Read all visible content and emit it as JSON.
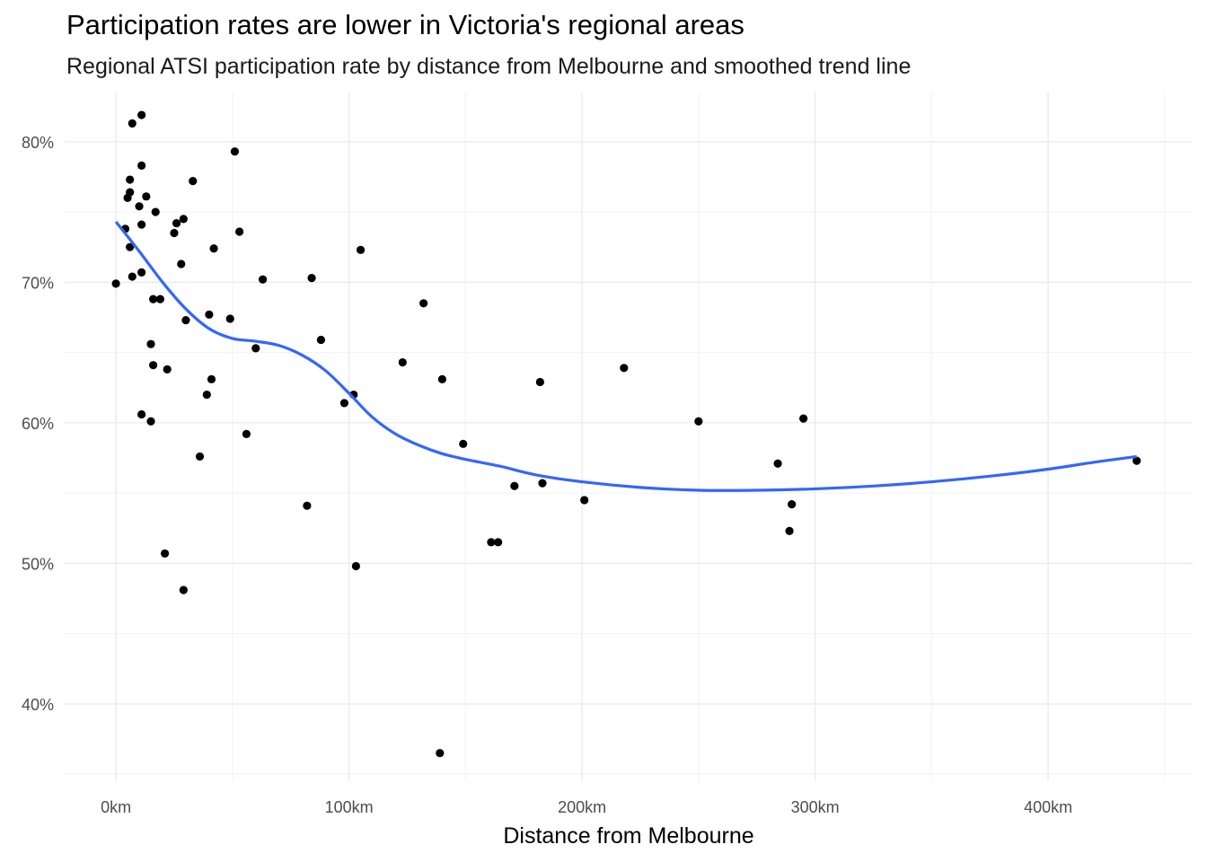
{
  "chart_data": {
    "type": "scatter",
    "title": "Participation rates are lower in Victoria's regional areas",
    "subtitle": "Regional ATSI participation rate by distance from Melbourne and smoothed trend line",
    "xlabel": "Distance from Melbourne",
    "ylabel": "",
    "xlim": [
      -22,
      462
    ],
    "ylim": [
      0.345,
      0.835
    ],
    "x_ticks": [
      0,
      100,
      200,
      300,
      400
    ],
    "x_tick_labels": [
      "0km",
      "100km",
      "200km",
      "300km",
      "400km"
    ],
    "y_ticks": [
      0.4,
      0.5,
      0.6,
      0.7,
      0.8
    ],
    "y_tick_labels": [
      "40%",
      "50%",
      "60%",
      "70%",
      "80%"
    ],
    "grid": true,
    "point_color": "#000000",
    "trend_color": "#3366ff",
    "points": [
      {
        "x": 0,
        "y": 0.699
      },
      {
        "x": 4,
        "y": 0.738
      },
      {
        "x": 5,
        "y": 0.76
      },
      {
        "x": 6,
        "y": 0.725
      },
      {
        "x": 6,
        "y": 0.764
      },
      {
        "x": 6,
        "y": 0.773
      },
      {
        "x": 7,
        "y": 0.704
      },
      {
        "x": 7,
        "y": 0.813
      },
      {
        "x": 10,
        "y": 0.754
      },
      {
        "x": 11,
        "y": 0.707
      },
      {
        "x": 11,
        "y": 0.741
      },
      {
        "x": 11,
        "y": 0.606
      },
      {
        "x": 11,
        "y": 0.783
      },
      {
        "x": 11,
        "y": 0.819
      },
      {
        "x": 13,
        "y": 0.761
      },
      {
        "x": 15,
        "y": 0.656
      },
      {
        "x": 15,
        "y": 0.601
      },
      {
        "x": 16,
        "y": 0.688
      },
      {
        "x": 16,
        "y": 0.641
      },
      {
        "x": 17,
        "y": 0.75
      },
      {
        "x": 19,
        "y": 0.688
      },
      {
        "x": 21,
        "y": 0.507
      },
      {
        "x": 22,
        "y": 0.638
      },
      {
        "x": 25,
        "y": 0.735
      },
      {
        "x": 26,
        "y": 0.742
      },
      {
        "x": 28,
        "y": 0.713
      },
      {
        "x": 29,
        "y": 0.745
      },
      {
        "x": 29,
        "y": 0.481
      },
      {
        "x": 30,
        "y": 0.673
      },
      {
        "x": 33,
        "y": 0.772
      },
      {
        "x": 36,
        "y": 0.576
      },
      {
        "x": 39,
        "y": 0.62
      },
      {
        "x": 40,
        "y": 0.677
      },
      {
        "x": 41,
        "y": 0.631
      },
      {
        "x": 42,
        "y": 0.724
      },
      {
        "x": 49,
        "y": 0.674
      },
      {
        "x": 51,
        "y": 0.793
      },
      {
        "x": 53,
        "y": 0.736
      },
      {
        "x": 56,
        "y": 0.592
      },
      {
        "x": 60,
        "y": 0.653
      },
      {
        "x": 63,
        "y": 0.702
      },
      {
        "x": 82,
        "y": 0.541
      },
      {
        "x": 84,
        "y": 0.703
      },
      {
        "x": 88,
        "y": 0.659
      },
      {
        "x": 98,
        "y": 0.614
      },
      {
        "x": 102,
        "y": 0.62
      },
      {
        "x": 103,
        "y": 0.498
      },
      {
        "x": 105,
        "y": 0.723
      },
      {
        "x": 123,
        "y": 0.643
      },
      {
        "x": 132,
        "y": 0.685
      },
      {
        "x": 139,
        "y": 0.365
      },
      {
        "x": 140,
        "y": 0.631
      },
      {
        "x": 149,
        "y": 0.585
      },
      {
        "x": 161,
        "y": 0.515
      },
      {
        "x": 164,
        "y": 0.515
      },
      {
        "x": 171,
        "y": 0.555
      },
      {
        "x": 182,
        "y": 0.629
      },
      {
        "x": 183,
        "y": 0.557
      },
      {
        "x": 201,
        "y": 0.545
      },
      {
        "x": 218,
        "y": 0.639
      },
      {
        "x": 250,
        "y": 0.601
      },
      {
        "x": 284,
        "y": 0.571
      },
      {
        "x": 289,
        "y": 0.523
      },
      {
        "x": 290,
        "y": 0.542
      },
      {
        "x": 295,
        "y": 0.603
      },
      {
        "x": 438,
        "y": 0.573
      }
    ],
    "trend": [
      {
        "x": 0,
        "y": 0.743
      },
      {
        "x": 10,
        "y": 0.722
      },
      {
        "x": 20,
        "y": 0.7
      },
      {
        "x": 30,
        "y": 0.681
      },
      {
        "x": 40,
        "y": 0.667
      },
      {
        "x": 50,
        "y": 0.66
      },
      {
        "x": 60,
        "y": 0.658
      },
      {
        "x": 70,
        "y": 0.655
      },
      {
        "x": 80,
        "y": 0.648
      },
      {
        "x": 90,
        "y": 0.637
      },
      {
        "x": 100,
        "y": 0.621
      },
      {
        "x": 110,
        "y": 0.604
      },
      {
        "x": 120,
        "y": 0.592
      },
      {
        "x": 130,
        "y": 0.584
      },
      {
        "x": 140,
        "y": 0.578
      },
      {
        "x": 150,
        "y": 0.574
      },
      {
        "x": 165,
        "y": 0.569
      },
      {
        "x": 180,
        "y": 0.563
      },
      {
        "x": 200,
        "y": 0.558
      },
      {
        "x": 225,
        "y": 0.554
      },
      {
        "x": 250,
        "y": 0.552
      },
      {
        "x": 275,
        "y": 0.552
      },
      {
        "x": 300,
        "y": 0.553
      },
      {
        "x": 325,
        "y": 0.555
      },
      {
        "x": 350,
        "y": 0.558
      },
      {
        "x": 375,
        "y": 0.562
      },
      {
        "x": 400,
        "y": 0.567
      },
      {
        "x": 420,
        "y": 0.572
      },
      {
        "x": 438,
        "y": 0.576
      }
    ]
  }
}
